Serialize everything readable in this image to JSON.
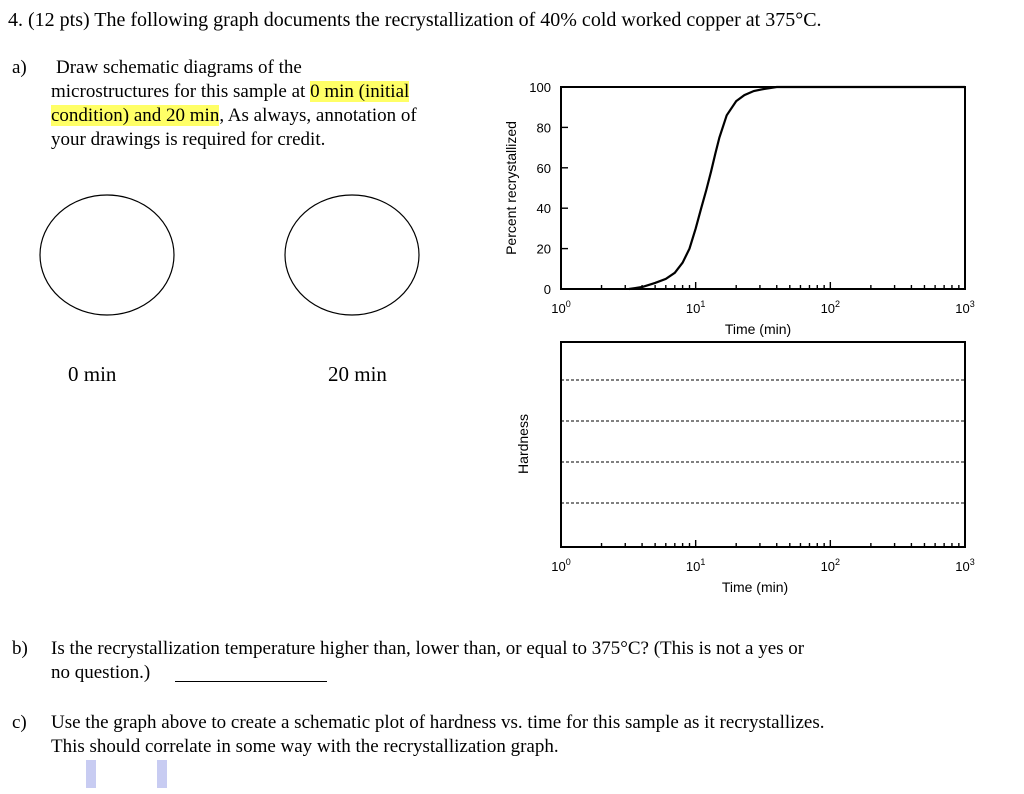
{
  "question": {
    "header": "4. (12 pts) The following graph documents the recrystallization of 40% cold worked copper at 375°C.",
    "part_a": {
      "marker": "a)",
      "line1": "Draw schematic diagrams of the",
      "line2_pre": "microstructures for this sample at ",
      "line2_hl": "0 min (initial",
      "line3_hl": "condition) and 20 min",
      "line3_post": ", As always, annotation of",
      "line4": "your drawings is required for credit.",
      "circle_left_label": "0 min",
      "circle_right_label": "20 min"
    },
    "part_b": {
      "marker": "b)",
      "line1": "Is the recrystallization temperature higher than, lower than, or equal to 375°C? (This is not a yes or",
      "line2": "no question.)"
    },
    "part_c": {
      "marker": "c)",
      "line1": "Use the graph above to create a schematic plot of hardness vs. time for this sample as it recrystallizes.",
      "line2": "This should correlate in some way with the recrystallization graph."
    }
  },
  "chart_data": [
    {
      "type": "line",
      "xlabel": "Time (min)",
      "ylabel": "Percent recrystallized",
      "x_scale": "log",
      "xlim": [
        1,
        1000
      ],
      "ylim": [
        0,
        100
      ],
      "x_ticks": [
        "10",
        "10",
        "10",
        "10"
      ],
      "x_tick_exponents": [
        "0",
        "1",
        "2",
        "3"
      ],
      "y_ticks": [
        "0",
        "20",
        "40",
        "60",
        "80",
        "100"
      ],
      "series": [
        {
          "x": [
            3.2,
            4.0,
            5.0,
            6.0,
            7.0,
            8.0,
            9.0,
            10.0,
            11.0,
            12.0,
            13.0,
            14.0,
            15.0,
            17.0,
            20.0,
            23.0,
            27.0,
            32.0,
            40.0,
            50.0
          ],
          "y": [
            0,
            1,
            3,
            5,
            8,
            13,
            20,
            30,
            40,
            49,
            58,
            67,
            75,
            86,
            93,
            96,
            98,
            99,
            100,
            100
          ]
        }
      ]
    },
    {
      "type": "line",
      "xlabel": "Time (min)",
      "ylabel": "Hardness",
      "x_scale": "log",
      "xlim": [
        1,
        1000
      ],
      "x_ticks": [
        "10",
        "10",
        "10",
        "10"
      ],
      "x_tick_exponents": [
        "0",
        "1",
        "2",
        "3"
      ],
      "grid": "dashed horizontal lines",
      "series": []
    }
  ]
}
